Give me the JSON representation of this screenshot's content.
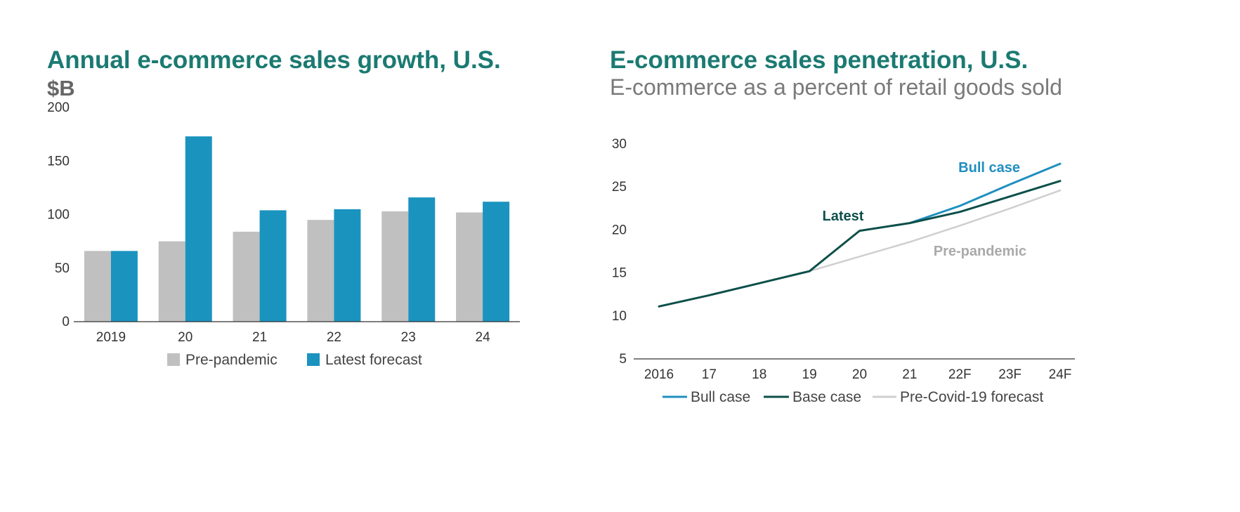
{
  "left_chart": {
    "title": "Annual e-commerce sales growth, U.S.",
    "unit_label": "$B"
  },
  "right_chart": {
    "title": "E-commerce sales penetration, U.S.",
    "subtitle": "E-commerce as a percent of retail goods sold"
  },
  "colors": {
    "title": "#1b7a72",
    "pre_pandemic_bar": "#c0c0c0",
    "latest_forecast_bar": "#1b93bf",
    "bull_case": "#1f8fbf",
    "base_case": "#0c4f4a",
    "pre_covid": "#cfcfcf",
    "latest_annotation": "#0c4f4a",
    "pre_pandemic_annotation": "#aaaaaa"
  },
  "chart_data": [
    {
      "type": "bar",
      "title": "Annual e-commerce sales growth, U.S.",
      "ylabel": "$B",
      "categories": [
        "2019",
        "20",
        "21",
        "22",
        "23",
        "24"
      ],
      "ylim": [
        0,
        200
      ],
      "yticks": [
        0,
        50,
        100,
        150,
        200
      ],
      "grid": false,
      "legend_position": "bottom",
      "series": [
        {
          "name": "Pre-pandemic",
          "values": [
            66,
            75,
            84,
            95,
            103,
            102
          ]
        },
        {
          "name": "Latest forecast",
          "values": [
            66,
            173,
            104,
            105,
            116,
            112
          ]
        }
      ]
    },
    {
      "type": "line",
      "title": "E-commerce sales penetration, U.S.",
      "subtitle": "E-commerce as a percent of retail goods sold",
      "categories": [
        "2016",
        "17",
        "18",
        "19",
        "20",
        "21",
        "22F",
        "23F",
        "24F"
      ],
      "ylim": [
        5,
        30
      ],
      "yticks": [
        5,
        10,
        15,
        20,
        25,
        30
      ],
      "grid": false,
      "legend_position": "bottom",
      "series": [
        {
          "name": "Bull case",
          "values": [
            null,
            null,
            null,
            null,
            null,
            20.8,
            22.8,
            25.3,
            27.7
          ]
        },
        {
          "name": "Base case",
          "values": [
            11.1,
            12.4,
            13.8,
            15.2,
            19.9,
            20.8,
            22.1,
            23.9,
            25.7
          ]
        },
        {
          "name": "Pre-Covid-19 forecast",
          "values": [
            null,
            null,
            null,
            15.2,
            16.9,
            18.6,
            20.5,
            22.5,
            24.6
          ]
        }
      ],
      "annotations": [
        "Bull case",
        "Latest",
        "Pre-pandemic"
      ]
    }
  ]
}
